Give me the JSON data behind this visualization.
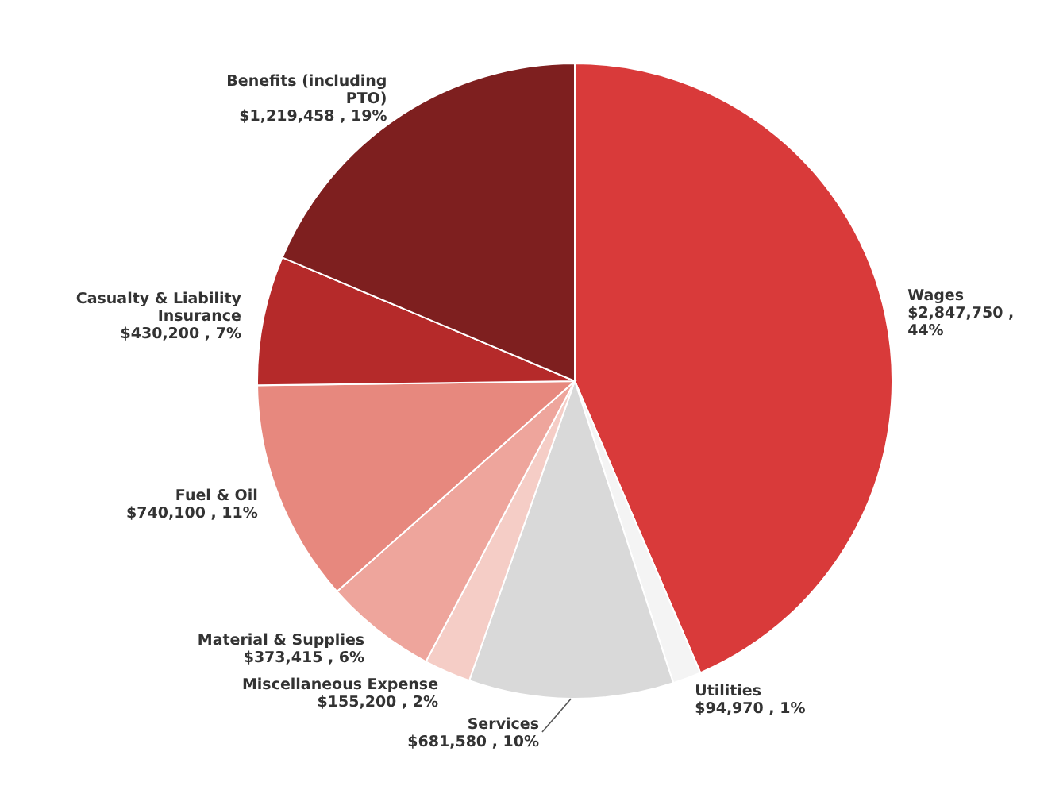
{
  "chart_data": {
    "type": "pie",
    "categories": [
      "Wages",
      "Utilities",
      "Services",
      "Miscellaneous Expense",
      "Material & Supplies",
      "Fuel & Oil",
      "Casualty & Liability Insurance",
      "Benefits (including PTO)"
    ],
    "values": [
      2847750,
      94970,
      681580,
      155200,
      373415,
      740100,
      430200,
      1219458
    ],
    "value_labels": [
      "$2,847,750 , 44%",
      "$94,970 , 1%",
      "$681,580 , 10%",
      "$155,200 , 2%",
      "$373,415 , 6%",
      "$740,100 , 11%",
      "$430,200 , 7%",
      "$1,219,458 , 19%"
    ],
    "colors": [
      "#d93a3a",
      "#f4f4f4",
      "#d9d9d9",
      "#f5cdc6",
      "#eea59c",
      "#e7887e",
      "#b52a2a",
      "#7e1f1f"
    ]
  }
}
